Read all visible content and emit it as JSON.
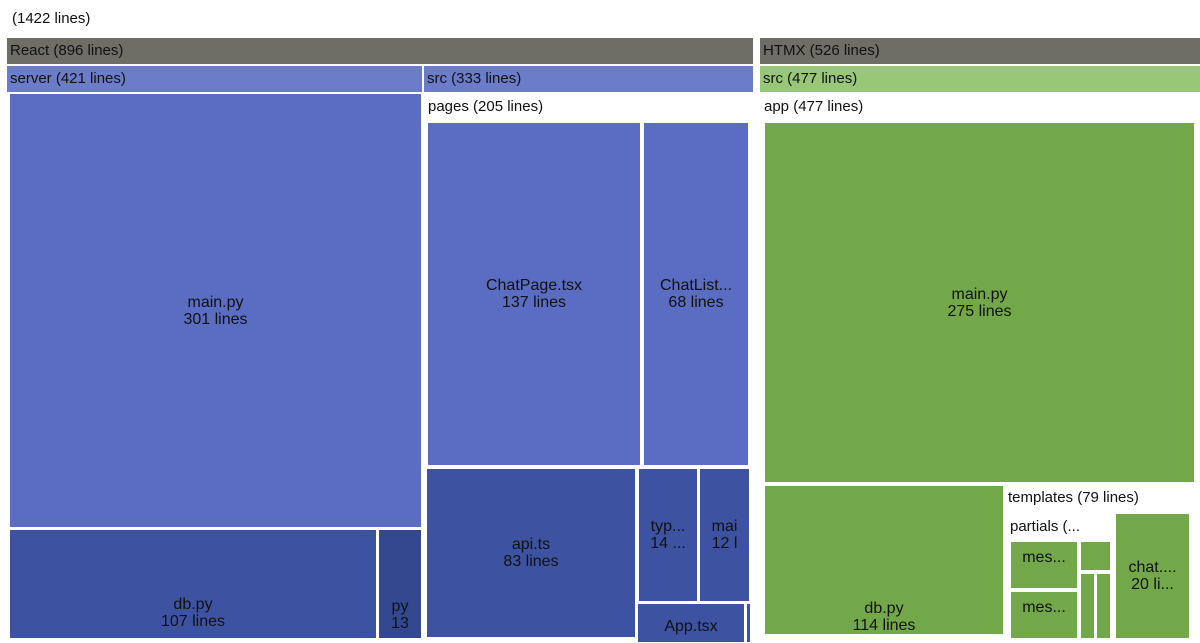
{
  "colors": {
    "repo_header": "#6e6e66",
    "react_dir": "#6b7cc9",
    "react_file": "#5a6dc2",
    "react_dark": "#3d52a0",
    "react_darker": "#34488f",
    "htmx_dir": "#97c777",
    "htmx_file": "#73a84a",
    "white": "#ffffff"
  },
  "chart_data": {
    "type": "treemap",
    "title": "(1422 lines)",
    "total_lines": 1422,
    "nodes": [
      {
        "path": "React",
        "label": "React (896 lines)",
        "lines": 896
      },
      {
        "path": "React/server",
        "label": "server (421 lines)",
        "lines": 421
      },
      {
        "path": "React/server/main.py",
        "label": "main.py",
        "sublabel": "301 lines",
        "lines": 301
      },
      {
        "path": "React/server/db.py",
        "label": "db.py",
        "sublabel": "107 lines",
        "lines": 107
      },
      {
        "path": "React/server/py",
        "label": "py",
        "sublabel": "13",
        "lines": 13
      },
      {
        "path": "React/src",
        "label": "src (333 lines)",
        "lines": 333
      },
      {
        "path": "React/src/pages",
        "label": "pages (205 lines)",
        "lines": 205
      },
      {
        "path": "React/src/pages/ChatPage.tsx",
        "label": "ChatPage.tsx",
        "sublabel": "137 lines",
        "lines": 137
      },
      {
        "path": "React/src/pages/ChatList",
        "label": "ChatList...",
        "sublabel": "68 lines",
        "lines": 68
      },
      {
        "path": "React/src/api.ts",
        "label": "api.ts",
        "sublabel": "83 lines",
        "lines": 83
      },
      {
        "path": "React/src/typ",
        "label": "typ...",
        "sublabel": "14 ...",
        "lines": 14
      },
      {
        "path": "React/src/mai",
        "label": "mai",
        "sublabel": "12 l",
        "lines": 12
      },
      {
        "path": "React/src/App.tsx",
        "label": "App.tsx",
        "sublabel": ""
      },
      {
        "path": "HTMX",
        "label": "HTMX (526 lines)",
        "lines": 526
      },
      {
        "path": "HTMX/src",
        "label": "src (477 lines)",
        "lines": 477
      },
      {
        "path": "HTMX/src/app",
        "label": "app (477 lines)",
        "lines": 477
      },
      {
        "path": "HTMX/src/app/main.py",
        "label": "main.py",
        "sublabel": "275 lines",
        "lines": 275
      },
      {
        "path": "HTMX/src/app/db.py",
        "label": "db.py",
        "sublabel": "114 lines",
        "lines": 114
      },
      {
        "path": "HTMX/src/app/templates",
        "label": "templates (79 lines)",
        "lines": 79
      },
      {
        "path": "HTMX/src/app/templates/partials",
        "label": "partials (..."
      },
      {
        "path": "HTMX/src/app/templates/partials/mes1",
        "label": "mes..."
      },
      {
        "path": "HTMX/src/app/templates/partials/mes2",
        "label": "mes..."
      },
      {
        "path": "HTMX/src/app/templates/chat",
        "label": "chat....",
        "sublabel": "20 li...",
        "lines": 20
      }
    ]
  }
}
